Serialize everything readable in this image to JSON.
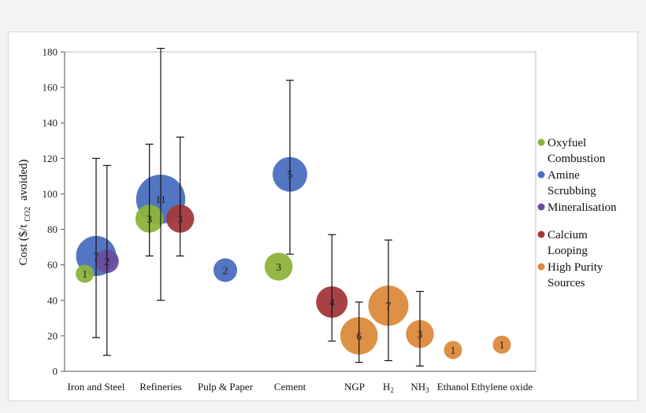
{
  "chart_data": {
    "type": "scatter",
    "variant": "bubble-with-error-bars",
    "ylabel": "Cost ($/t CO2 avoided)",
    "ylabel_main": "Cost ($/t",
    "ylabel_sub": "CO2",
    "ylabel_end": "avoided)",
    "ylim": [
      0,
      180
    ],
    "yticks": [
      0,
      20,
      40,
      60,
      80,
      100,
      120,
      140,
      160,
      180
    ],
    "grid": false,
    "legend_position": "right",
    "categories": [
      {
        "label": "Iron and Steel"
      },
      {
        "label": "Refineries"
      },
      {
        "label": "Pulp & Paper"
      },
      {
        "label": "Cement"
      },
      {
        "label": "NGP"
      },
      {
        "label": "H",
        "sub": "2"
      },
      {
        "label": "NH",
        "sub": "3"
      },
      {
        "label": "Ethanol"
      },
      {
        "label": "Ethylene oxide"
      }
    ],
    "series": [
      {
        "name": "Oxyfuel Combustion",
        "legend_lines": [
          "Oxyfuel",
          "Combustion"
        ],
        "color": "#8db33a"
      },
      {
        "name": "Amine Scrubbing",
        "legend_lines": [
          "Amine",
          "Scrubbing"
        ],
        "color": "#4a6fbf"
      },
      {
        "name": "Mineralisation",
        "legend_lines": [
          "Mineralisation"
        ],
        "color": "#6a4da0"
      },
      {
        "name": "Calcium Looping",
        "legend_lines": [
          "Calcium",
          "Looping"
        ],
        "color": "#a2383a"
      },
      {
        "name": "High Purity Sources",
        "legend_lines": [
          "High Purity",
          "Sources"
        ],
        "color": "#dc8a3c"
      }
    ],
    "points": [
      {
        "category": "Iron and Steel",
        "series": "Oxyfuel Combustion",
        "offset": -0.25,
        "y": 55,
        "label": "1",
        "size": 1,
        "err": null
      },
      {
        "category": "Iron and Steel",
        "series": "Amine Scrubbing",
        "offset": 0,
        "y": 65,
        "label": "7",
        "size": 7,
        "err": [
          19,
          120
        ]
      },
      {
        "category": "Iron and Steel",
        "series": "Mineralisation",
        "offset": 0.24,
        "y": 62,
        "label": "2",
        "size": 2,
        "err": [
          9,
          116
        ]
      },
      {
        "category": "Refineries",
        "series": "Oxyfuel Combustion",
        "offset": -0.25,
        "y": 86,
        "label": "3",
        "size": 3,
        "err": [
          65,
          128
        ]
      },
      {
        "category": "Refineries",
        "series": "Amine Scrubbing",
        "offset": 0,
        "y": 97,
        "label": "11",
        "size": 11,
        "err": [
          40,
          182
        ]
      },
      {
        "category": "Refineries",
        "series": "Calcium Looping",
        "offset": 0.43,
        "y": 86,
        "label": "3",
        "size": 3,
        "err": [
          65,
          132
        ]
      },
      {
        "category": "Pulp & Paper",
        "series": "Amine Scrubbing",
        "offset": 0,
        "y": 57,
        "label": "2",
        "size": 2,
        "err": null
      },
      {
        "category": "Cement",
        "series": "Oxyfuel Combustion",
        "offset": -0.25,
        "y": 59,
        "label": "3",
        "size": 3,
        "err": null
      },
      {
        "category": "Cement",
        "series": "Amine Scrubbing",
        "offset": 0,
        "y": 111,
        "label": "5",
        "size": 5,
        "err": [
          66,
          164
        ]
      },
      {
        "category": "NGP",
        "series": "Calcium Looping",
        "offset": -0.5,
        "y": 39,
        "label": "4",
        "size": 4,
        "err": [
          17,
          77
        ]
      },
      {
        "category": "NGP",
        "series": "High Purity Sources",
        "offset": 0.1,
        "y": 20,
        "label": "6",
        "size": 6,
        "err": [
          5,
          39
        ]
      },
      {
        "category": "H2",
        "series": "High Purity Sources",
        "offset": 0,
        "y": 37,
        "label": "7",
        "size": 7,
        "err": [
          6,
          74
        ]
      },
      {
        "category": "NH3",
        "series": "High Purity Sources",
        "offset": 0,
        "y": 21,
        "label": "3",
        "size": 3,
        "err": [
          3,
          45
        ]
      },
      {
        "category": "Ethanol",
        "series": "High Purity Sources",
        "offset": 0,
        "y": 12,
        "label": "1",
        "size": 1,
        "err": null
      },
      {
        "category": "Ethylene oxide",
        "series": "High Purity Sources",
        "offset": 0,
        "y": 15,
        "label": "1",
        "size": 1,
        "err": null
      }
    ]
  }
}
